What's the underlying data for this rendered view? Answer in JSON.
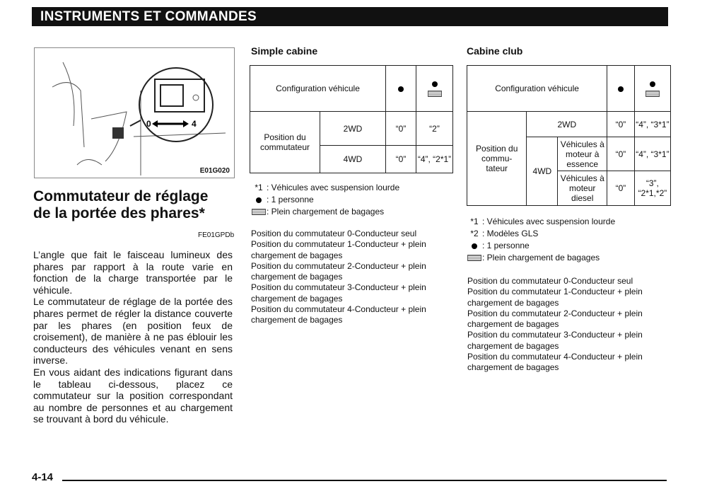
{
  "header": {
    "title": "INSTRUMENTS ET COMMANDES"
  },
  "figure": {
    "code": "E01G020",
    "range_min": "0",
    "range_max": "4"
  },
  "section": {
    "title_line1": "Commutateur de réglage",
    "title_line2": "de la portée des phares*",
    "code": "FE01GPDb"
  },
  "body": [
    "L’angle que fait le faisceau lumineux des phares par rapport à la route varie en fonction de la charge transportée par le véhicule.",
    "Le commutateur de réglage de la portée des phares permet de régler la distance couverte par les phares (en position feux de croisement), de manière à ne pas éblouir les conducteurs des véhicules venant en sens inverse.",
    "En vous aidant des indications figurant dans le tableau ci-dessous, placez ce commutateur sur la position correspondant au nombre de personnes et au chargement se trouvant à bord du véhicule."
  ],
  "simple": {
    "title": "Simple cabine",
    "config": "Configuration véhicule",
    "position": "Position du commutateur",
    "r1": {
      "label": "2WD",
      "a": "“0”",
      "b": "“2”"
    },
    "r2": {
      "label": "4WD",
      "a": "“0”",
      "b": "“4”, “2*1”"
    },
    "legend": [
      {
        "key": "*1",
        "text": ": Véhicules avec suspension lourde"
      },
      {
        "key": "●",
        "text": ": 1 personne"
      },
      {
        "key": "bag",
        "text": ": Plein chargement de bagages"
      }
    ]
  },
  "club": {
    "title": "Cabine club",
    "config": "Configuration véhicule",
    "position": "Position du commu- tateur",
    "wd2": {
      "label": "2WD",
      "a": "“0”",
      "b": "“4”, “3*1”"
    },
    "wd4": "4WD",
    "essence": {
      "label": "Véhicules à moteur à essence",
      "a": "“0”",
      "b": "“4”, “3*1”"
    },
    "diesel": {
      "label": "Véhicules à moteur diesel",
      "a": "“0”",
      "b": "“3”, “2*1,*2”"
    },
    "legend": [
      {
        "key": "*1",
        "text": ": Véhicules avec suspension lourde"
      },
      {
        "key": "*2",
        "text": ": Modèles GLS"
      },
      {
        "key": "●",
        "text": ": 1 personne"
      },
      {
        "key": "bag",
        "text": ": Plein chargement de bagages"
      }
    ]
  },
  "positions": [
    "Position du commutateur 0-Conducteur seul",
    "Position du commutateur 1-Conducteur + plein",
    "chargement de bagages",
    "Position du commutateur 2-Conducteur + plein",
    "chargement de bagages",
    "Position du commutateur 3-Conducteur + plein",
    "chargement de bagages",
    "Position du commutateur 4-Conducteur + plein",
    "chargement de bagages"
  ],
  "footer": {
    "page": "4-14"
  }
}
